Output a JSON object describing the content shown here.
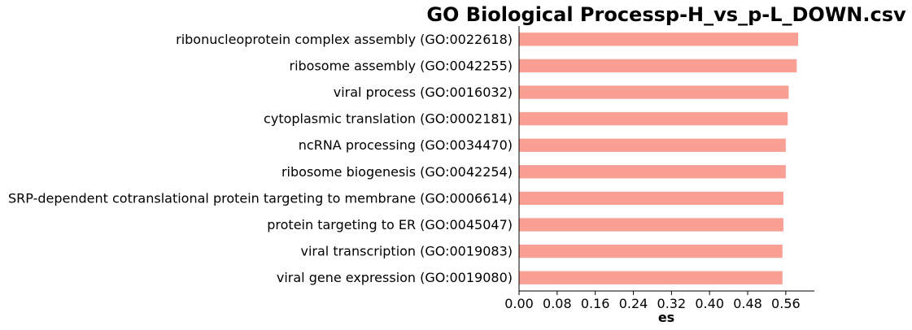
{
  "chart_data": {
    "type": "bar",
    "orientation": "horizontal",
    "title": "GO Biological Processp-H_vs_p-L_DOWN.csv",
    "xlabel": "es",
    "ylabel": "",
    "categories": [
      "ribonucleoprotein complex assembly (GO:0022618)",
      "ribosome assembly (GO:0042255)",
      "viral process (GO:0016032)",
      "cytoplasmic translation (GO:0002181)",
      "ncRNA processing (GO:0034470)",
      "ribosome biogenesis (GO:0042254)",
      "SRP-dependent cotranslational protein targeting to membrane (GO:0006614)",
      "protein targeting to ER (GO:0045047)",
      "viral transcription (GO:0019083)",
      "viral gene expression (GO:0019080)"
    ],
    "values": [
      0.586,
      0.583,
      0.566,
      0.564,
      0.56,
      0.56,
      0.555,
      0.555,
      0.553,
      0.553
    ],
    "xlim": [
      0,
      0.62
    ],
    "xticks": [
      "0.00",
      "0.08",
      "0.16",
      "0.24",
      "0.32",
      "0.40",
      "0.48",
      "0.56"
    ],
    "bar_color": "#fa9f94",
    "grid": false,
    "legend": "none"
  }
}
